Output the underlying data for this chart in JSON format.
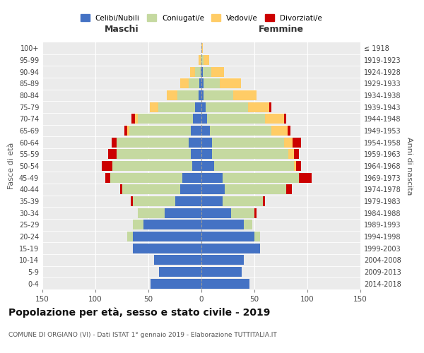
{
  "age_groups": [
    "0-4",
    "5-9",
    "10-14",
    "15-19",
    "20-24",
    "25-29",
    "30-34",
    "35-39",
    "40-44",
    "45-49",
    "50-54",
    "55-59",
    "60-64",
    "65-69",
    "70-74",
    "75-79",
    "80-84",
    "85-89",
    "90-94",
    "95-99",
    "100+"
  ],
  "birth_years": [
    "2014-2018",
    "2009-2013",
    "2004-2008",
    "1999-2003",
    "1994-1998",
    "1989-1993",
    "1984-1988",
    "1979-1983",
    "1974-1978",
    "1969-1973",
    "1964-1968",
    "1959-1963",
    "1954-1958",
    "1949-1953",
    "1944-1948",
    "1939-1943",
    "1934-1938",
    "1929-1933",
    "1924-1928",
    "1919-1923",
    "≤ 1918"
  ],
  "male_celibi": [
    48,
    40,
    45,
    65,
    65,
    55,
    35,
    25,
    20,
    18,
    9,
    10,
    12,
    10,
    8,
    6,
    3,
    2,
    1,
    0,
    0
  ],
  "male_coniugati": [
    0,
    0,
    0,
    0,
    5,
    10,
    25,
    40,
    55,
    68,
    75,
    70,
    68,
    58,
    52,
    35,
    20,
    10,
    5,
    1,
    0
  ],
  "male_vedovi": [
    0,
    0,
    0,
    0,
    0,
    0,
    0,
    0,
    0,
    0,
    0,
    0,
    0,
    2,
    3,
    8,
    10,
    8,
    5,
    2,
    0
  ],
  "male_divorziati": [
    0,
    0,
    0,
    0,
    0,
    0,
    0,
    2,
    2,
    5,
    10,
    8,
    5,
    3,
    3,
    0,
    0,
    0,
    0,
    0,
    0
  ],
  "female_celibi": [
    45,
    38,
    40,
    55,
    50,
    40,
    28,
    20,
    22,
    20,
    12,
    10,
    10,
    8,
    5,
    4,
    2,
    2,
    1,
    0,
    0
  ],
  "female_coniugati": [
    0,
    0,
    0,
    0,
    5,
    8,
    22,
    38,
    58,
    72,
    75,
    72,
    68,
    58,
    55,
    40,
    28,
    15,
    8,
    2,
    0
  ],
  "female_vedovi": [
    0,
    0,
    0,
    0,
    0,
    0,
    0,
    0,
    0,
    0,
    2,
    5,
    8,
    15,
    18,
    20,
    22,
    20,
    12,
    5,
    1
  ],
  "female_divorziati": [
    0,
    0,
    0,
    0,
    0,
    0,
    2,
    2,
    5,
    12,
    5,
    5,
    8,
    3,
    2,
    2,
    0,
    0,
    0,
    0,
    0
  ],
  "colors": {
    "celibi": "#4472C4",
    "coniugati": "#C5D9A0",
    "vedovi": "#FFCC66",
    "divorziati": "#CC0000"
  },
  "title": "Popolazione per età, sesso e stato civile - 2019",
  "subtitle": "COMUNE DI ORGIANO (VI) - Dati ISTAT 1° gennaio 2019 - Elaborazione TUTTITALIA.IT",
  "xlabel_left": "Maschi",
  "xlabel_right": "Femmine",
  "ylabel_left": "Fasce di età",
  "ylabel_right": "Anni di nascita",
  "xlim": 150,
  "legend_labels": [
    "Celibi/Nubili",
    "Coniugati/e",
    "Vedovi/e",
    "Divorziati/e"
  ],
  "background_color": "#EBEBEB",
  "title_fontsize": 10,
  "subtitle_fontsize": 6.5
}
